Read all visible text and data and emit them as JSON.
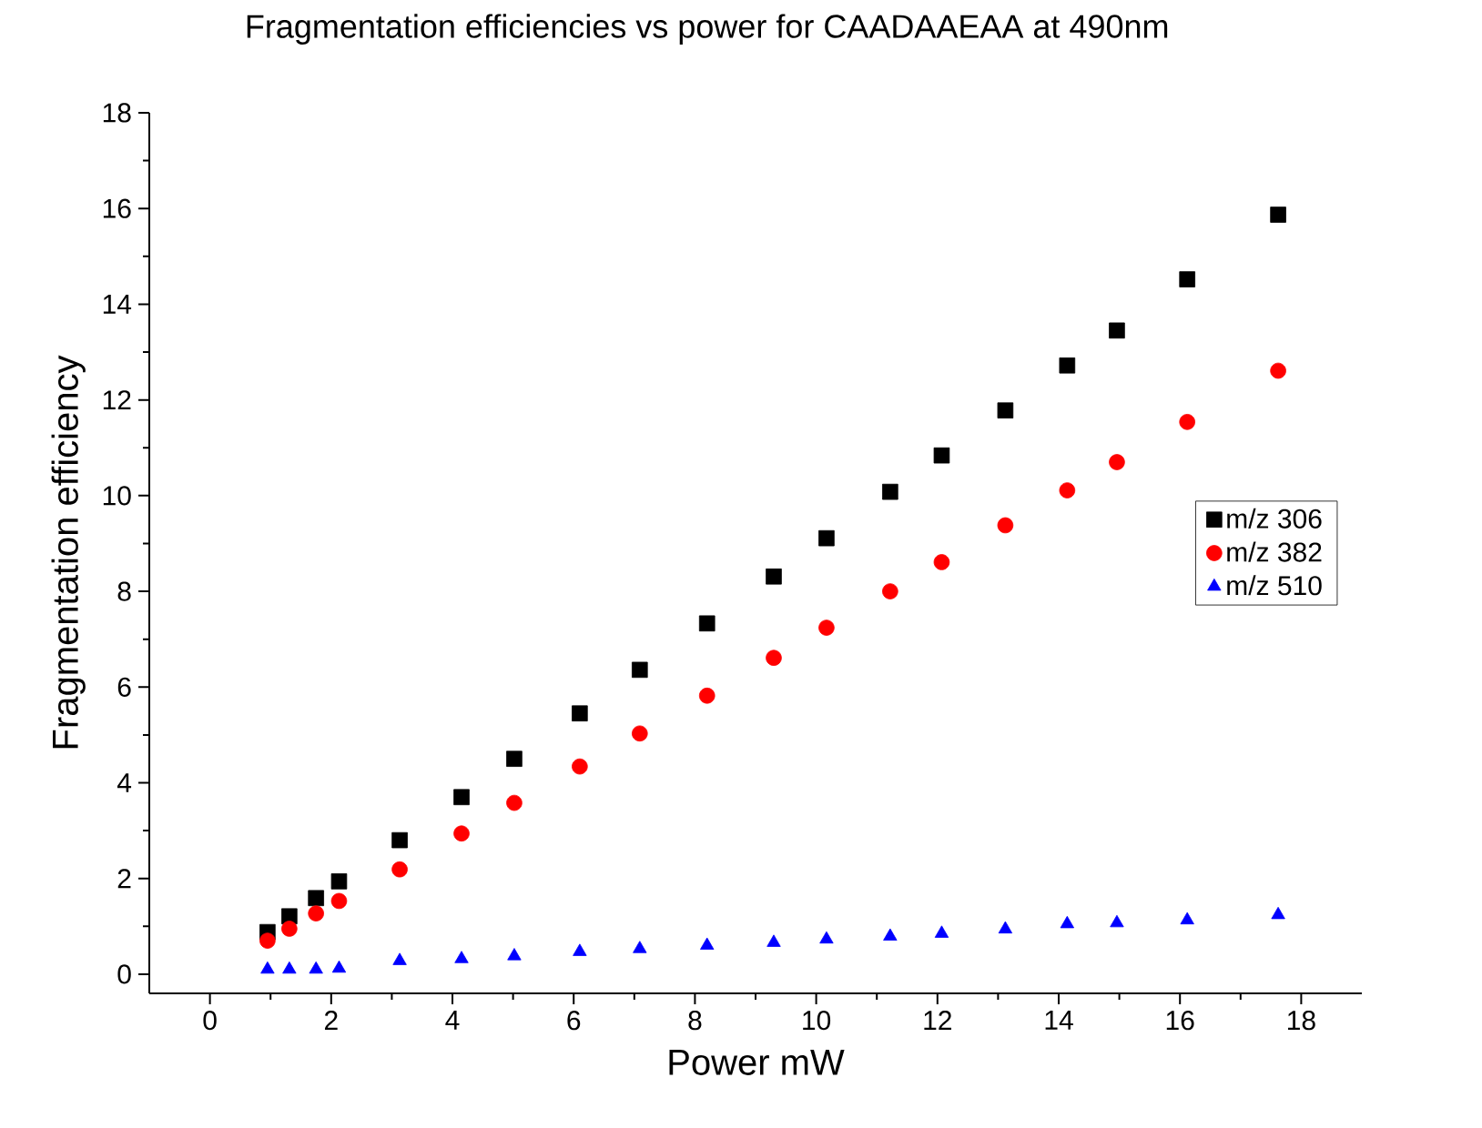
{
  "chart_data": {
    "type": "scatter",
    "title": "Fragmentation efficiencies vs power for CAADAAEAA at 490nm",
    "xlabel": "Power mW",
    "ylabel": "Fragmentation efficiency",
    "x": [
      0.95,
      1.31,
      1.75,
      2.13,
      3.13,
      4.15,
      5.02,
      6.1,
      7.09,
      8.2,
      9.3,
      10.17,
      11.22,
      12.07,
      13.12,
      14.14,
      14.96,
      16.12,
      17.62
    ],
    "series": [
      {
        "name": "m/z 306",
        "color": "#000000",
        "marker": "square",
        "values": [
          0.88,
          1.21,
          1.59,
          1.94,
          2.8,
          3.7,
          4.5,
          5.45,
          6.36,
          7.33,
          8.31,
          9.11,
          10.08,
          10.84,
          11.78,
          12.72,
          13.45,
          14.52,
          15.87
        ]
      },
      {
        "name": "m/z 382",
        "color": "#ff0000",
        "marker": "circle",
        "values": [
          0.7,
          0.95,
          1.27,
          1.53,
          2.19,
          2.94,
          3.58,
          4.34,
          5.03,
          5.82,
          6.61,
          7.24,
          8.0,
          8.61,
          9.38,
          10.11,
          10.7,
          11.54,
          12.61
        ]
      },
      {
        "name": "m/z 510",
        "color": "#0000ff",
        "marker": "triangle",
        "values": [
          0.1,
          0.1,
          0.1,
          0.12,
          0.28,
          0.32,
          0.38,
          0.47,
          0.53,
          0.6,
          0.66,
          0.73,
          0.79,
          0.85,
          0.94,
          1.05,
          1.07,
          1.13,
          1.24
        ]
      }
    ],
    "xlim": [
      -1,
      19
    ],
    "ylim": [
      -0.4,
      18
    ],
    "xticks": [
      0,
      2,
      4,
      6,
      8,
      10,
      12,
      14,
      16,
      18
    ],
    "yticks": [
      0,
      2,
      4,
      6,
      8,
      10,
      12,
      14,
      16,
      18
    ],
    "grid": false,
    "legend": "right"
  }
}
